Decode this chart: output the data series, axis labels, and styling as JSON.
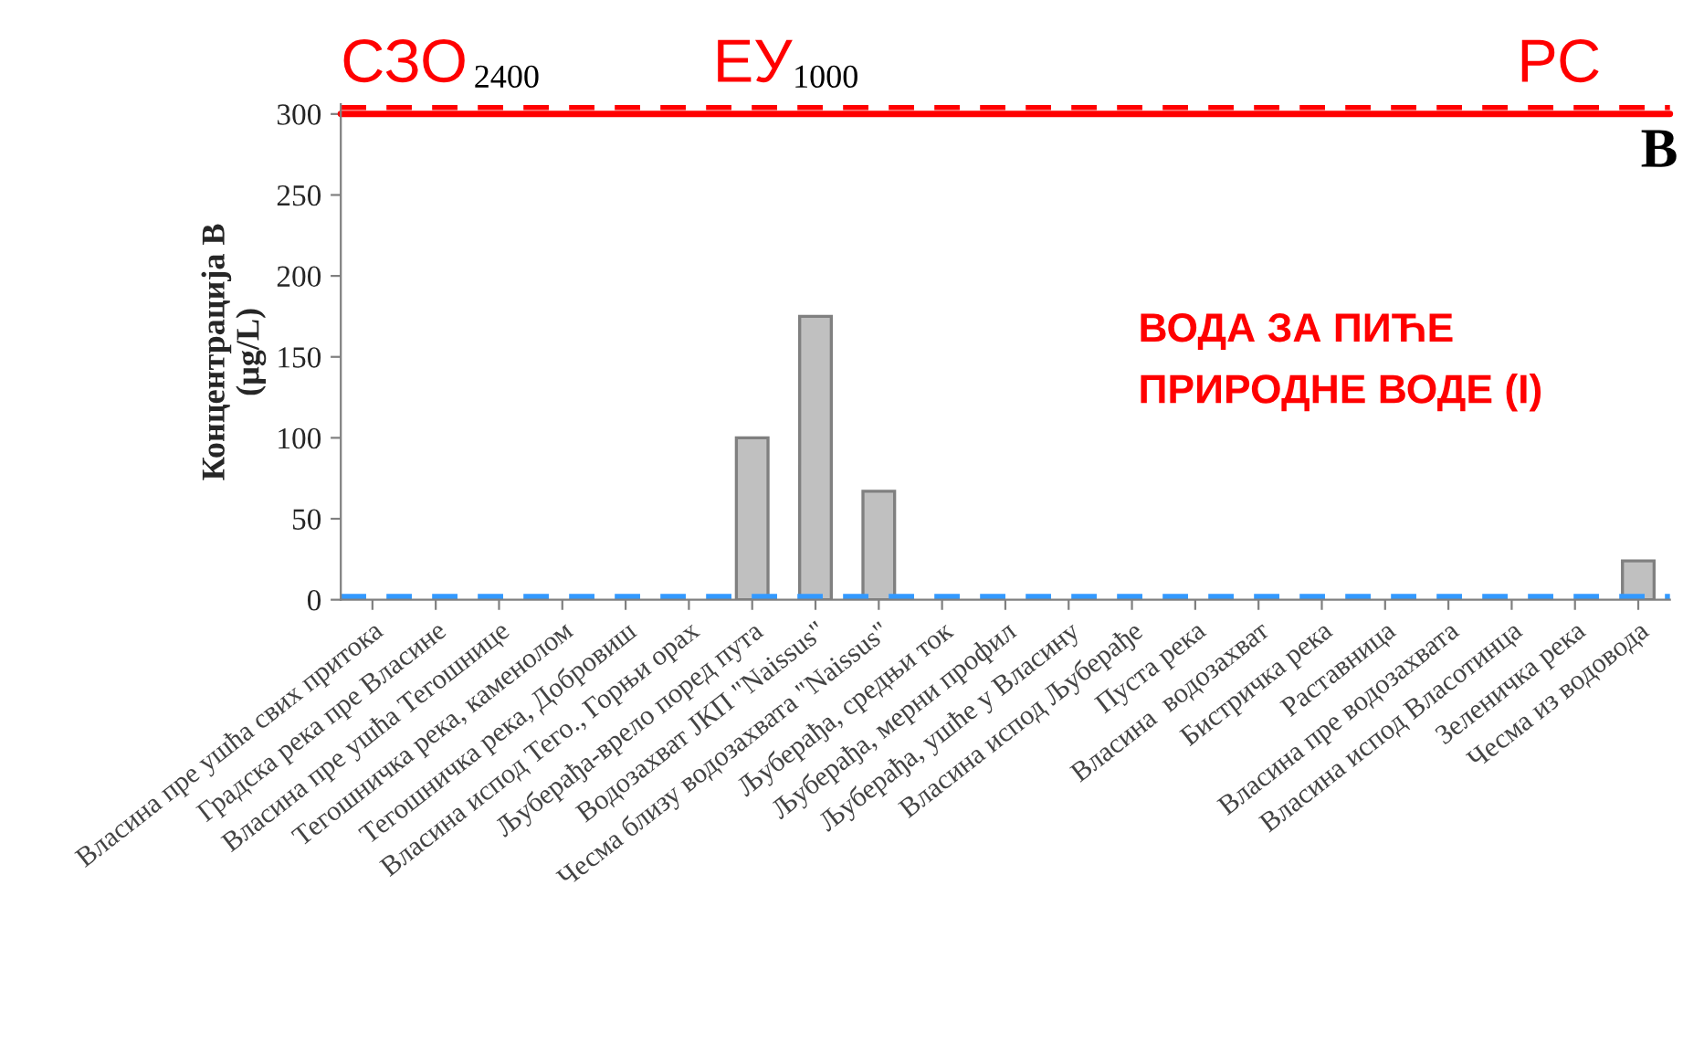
{
  "chart_data": {
    "type": "bar",
    "ylabel": "Концентрација B\n(µg/L)",
    "categories": [
      "Власина пре ушћа свих притока",
      "Градска река пре Власине",
      "Власина пре ушћа Тегошнице",
      "Тегошничка река, каменолом",
      "Тегошничка река, Добровиш",
      "Власина испод Тего., Горњи орах",
      "Љуберађа-врело поред пута",
      "Водозахват ЈКП \"Naissus\"",
      "Чесма близу водозахвата \"Naissus\"",
      "Љуберађа, средњи ток",
      "Љуберађа, мерни профил",
      "Љуберађа, ушће у Власину",
      "Власина испод Љуберађе",
      "Пуста река",
      "Власина  водозахват",
      "Бистричка река",
      "Раставница",
      "Власина пре водозахвата",
      "Власина испод Власотинца",
      "Зеленичка река",
      "Чесма из водовода"
    ],
    "values": [
      null,
      null,
      null,
      null,
      null,
      null,
      100,
      175,
      67,
      null,
      null,
      null,
      null,
      null,
      null,
      null,
      null,
      null,
      null,
      null,
      24
    ],
    "color": "#c0c0c0",
    "ylim": [
      0,
      306
    ],
    "yticks": [
      0,
      50,
      100,
      150,
      200,
      250,
      300
    ],
    "ref_lines": [
      {
        "axis": "y",
        "value": 300,
        "color": "#ff0000",
        "line_style": "solid"
      },
      {
        "axis": "y",
        "value": 304,
        "color": "#ff0000",
        "line_style": "dashed"
      },
      {
        "axis": "y",
        "value": 2,
        "color": "#3399ff",
        "line_style": "dashed"
      }
    ],
    "annotations": [
      "СЗО",
      "2400",
      "ЕУ",
      "1000",
      "РС",
      "B",
      "ВОДА ЗА ПИЋЕ\nПРИРОДНЕ ВОДЕ (I)"
    ],
    "grid": false
  }
}
